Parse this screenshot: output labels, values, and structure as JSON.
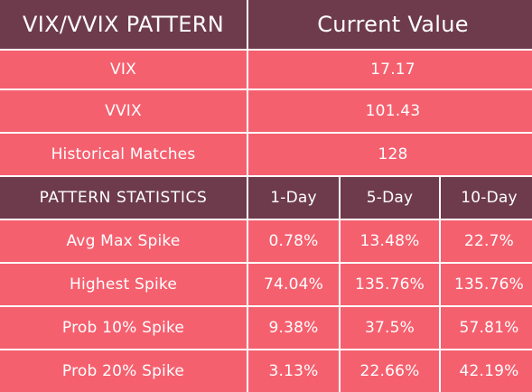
{
  "header": {
    "left": "VIX/VVIX PATTERN",
    "right": "Current Value"
  },
  "rows": [
    {
      "label": "VIX",
      "value": "17.17"
    },
    {
      "label": "VVIX",
      "value": "101.43"
    },
    {
      "label": "Historical Matches",
      "value": "128"
    }
  ],
  "stats_header": {
    "label": "PATTERN STATISTICS",
    "cols": [
      "1-Day",
      "5-Day",
      "10-Day"
    ]
  },
  "stats": [
    {
      "label": "Avg Max Spike",
      "values": [
        "0.78%",
        "13.48%",
        "22.7%"
      ]
    },
    {
      "label": "Highest Spike",
      "values": [
        "74.04%",
        "135.76%",
        "135.76%"
      ]
    },
    {
      "label": "Prob 10% Spike",
      "values": [
        "9.38%",
        "37.5%",
        "57.81%"
      ]
    },
    {
      "label": "Prob 20% Spike",
      "values": [
        "3.13%",
        "22.66%",
        "42.19%"
      ]
    }
  ],
  "colors": {
    "header_bg": "#6e3b4c",
    "row_bg": "#f5606f",
    "text": "#ffffff"
  }
}
